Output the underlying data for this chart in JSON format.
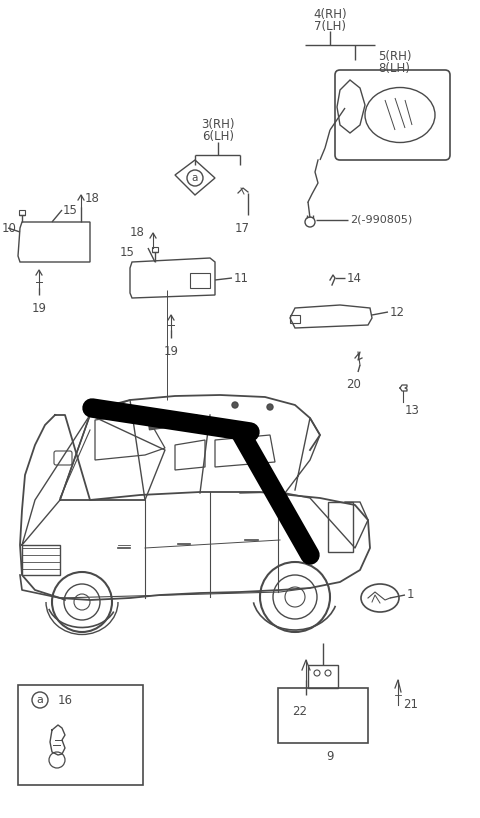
{
  "bg_color": "#ffffff",
  "line_color": "#4a4a4a",
  "fig_width": 4.8,
  "fig_height": 8.18,
  "dpi": 100,
  "labels": {
    "lbl4": "4(RH)",
    "lbl7": "7(LH)",
    "lbl5": "5(RH)",
    "lbl8": "8(LH)",
    "lbl3": "3(RH)",
    "lbl6": "6(LH)",
    "lbl2": "2(-990805)",
    "lbl10": "10",
    "lbl15a": "15",
    "lbl18a": "18",
    "lbl15b": "15",
    "lbl18b": "18",
    "lbl19a": "19",
    "lbl11": "11",
    "lbl19b": "19",
    "lbl14": "14",
    "lbl12": "12",
    "lbl20": "20",
    "lbl13": "13",
    "lbl17": "17",
    "lbl1": "1",
    "lbl9": "9",
    "lbl16": "16",
    "lbl22": "22",
    "lbl21": "21",
    "lbla": "a"
  }
}
